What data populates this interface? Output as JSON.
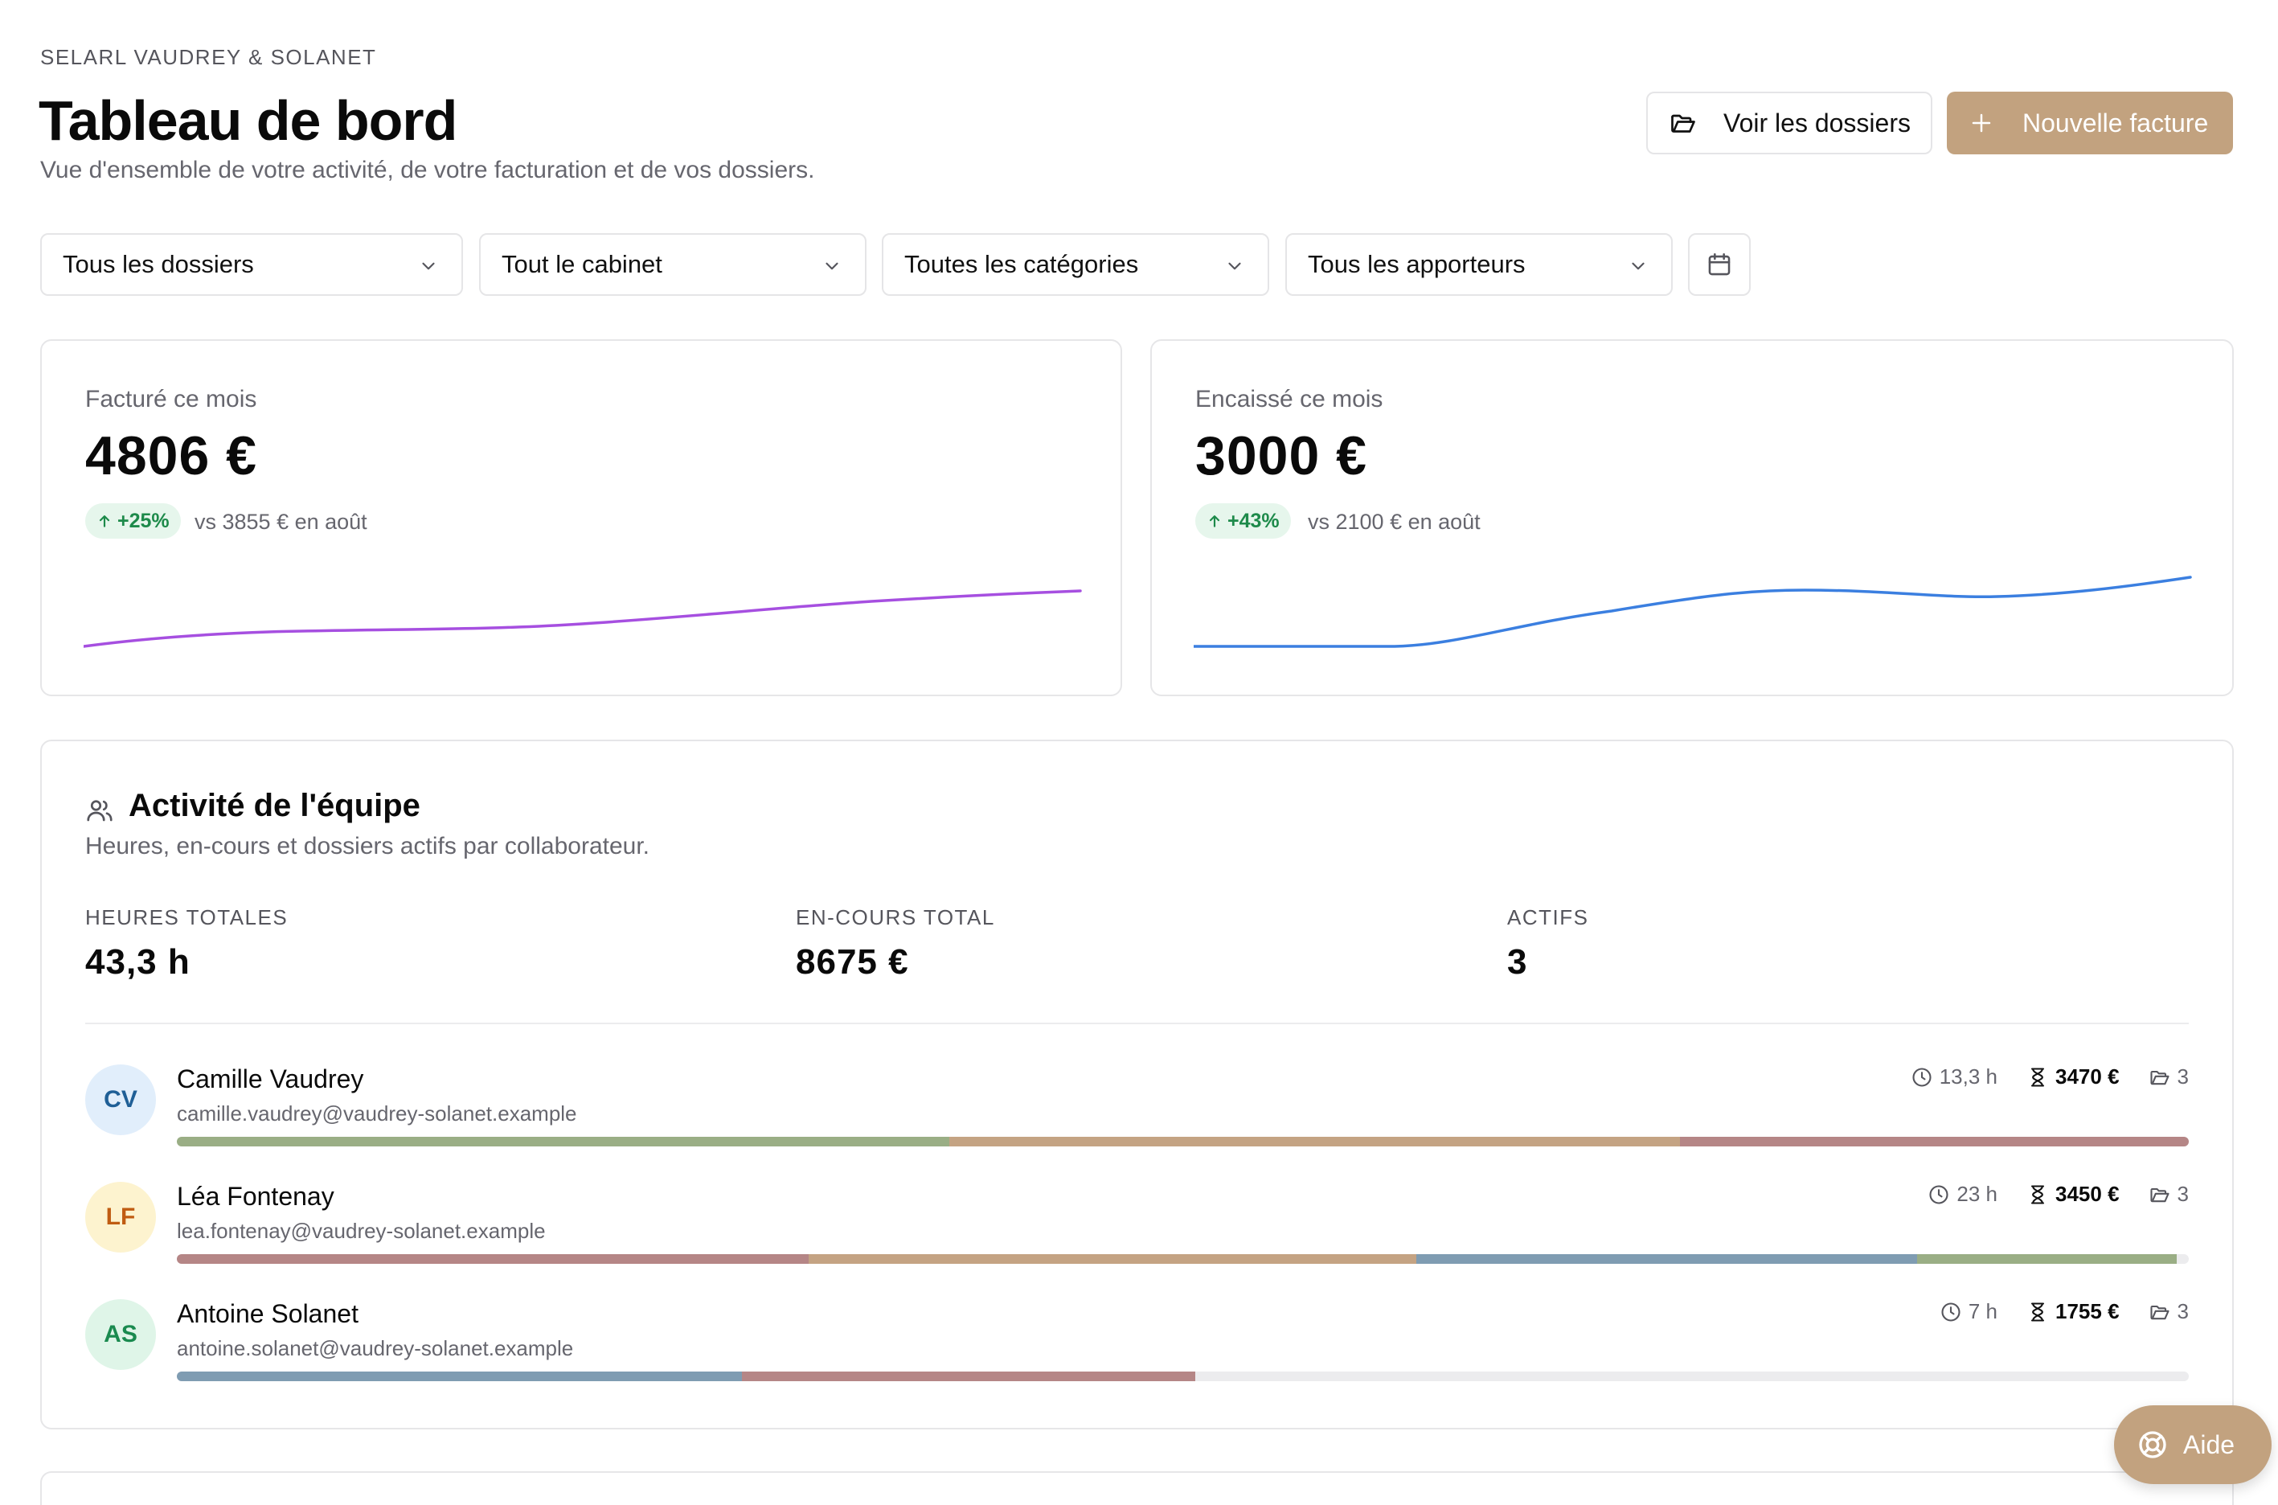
{
  "header": {
    "firm": "SELARL VAUDREY & SOLANET",
    "title": "Tableau de bord",
    "subtitle": "Vue d'ensemble de votre activité, de votre facturation et de vos dossiers.",
    "view_folders_label": "Voir les dossiers",
    "new_invoice_label": "Nouvelle facture"
  },
  "filters": {
    "dossiers": "Tous les dossiers",
    "cabinet": "Tout le cabinet",
    "categories": "Toutes les catégories",
    "apporteurs": "Tous les apporteurs"
  },
  "kpis": [
    {
      "label": "Facturé ce mois",
      "value": "4806 €",
      "delta": "+25%",
      "compare": "vs 3855 € en août",
      "color": "#a64fe0"
    },
    {
      "label": "Encaissé ce mois",
      "value": "3000 €",
      "delta": "+43%",
      "compare": "vs 2100 € en août",
      "color": "#3b7fe0"
    }
  ],
  "team": {
    "title": "Activité de l'équipe",
    "subtitle": "Heures, en-cours et dossiers actifs par collaborateur.",
    "stats": [
      {
        "label": "HEURES TOTALES",
        "value": "43,3 h"
      },
      {
        "label": "EN-COURS TOTAL",
        "value": "8675 €"
      },
      {
        "label": "ACTIFS",
        "value": "3"
      }
    ],
    "members": [
      {
        "initials": "CV",
        "name": "Camille Vaudrey",
        "email": "camille.vaudrey@vaudrey-solanet.example",
        "hours": "13,3 h",
        "encours": "3470 €",
        "dossiers": "3",
        "avatar_bg": "#e1eefb",
        "avatar_fg": "#1f5f96",
        "segments": [
          {
            "pct": 38.4,
            "color": "#9aae85"
          },
          {
            "pct": 36.3,
            "color": "#c4a383"
          },
          {
            "pct": 25.3,
            "color": "#b58686"
          }
        ]
      },
      {
        "initials": "LF",
        "name": "Léa Fontenay",
        "email": "lea.fontenay@vaudrey-solanet.example",
        "hours": "23 h",
        "encours": "3450 €",
        "dossiers": "3",
        "avatar_bg": "#fdf3cf",
        "avatar_fg": "#c05c12",
        "segments": [
          {
            "pct": 31.4,
            "color": "#b58686"
          },
          {
            "pct": 30.2,
            "color": "#c4a383"
          },
          {
            "pct": 24.9,
            "color": "#7f9cb2"
          },
          {
            "pct": 12.9,
            "color": "#9aae85"
          }
        ]
      },
      {
        "initials": "AS",
        "name": "Antoine Solanet",
        "email": "antoine.solanet@vaudrey-solanet.example",
        "hours": "7 h",
        "encours": "1755 €",
        "dossiers": "3",
        "avatar_bg": "#dff5e8",
        "avatar_fg": "#1a8a4f",
        "segments": [
          {
            "pct": 28.1,
            "color": "#7f9cb2"
          },
          {
            "pct": 22.5,
            "color": "#b58686"
          }
        ]
      }
    ]
  },
  "help_label": "Aide"
}
